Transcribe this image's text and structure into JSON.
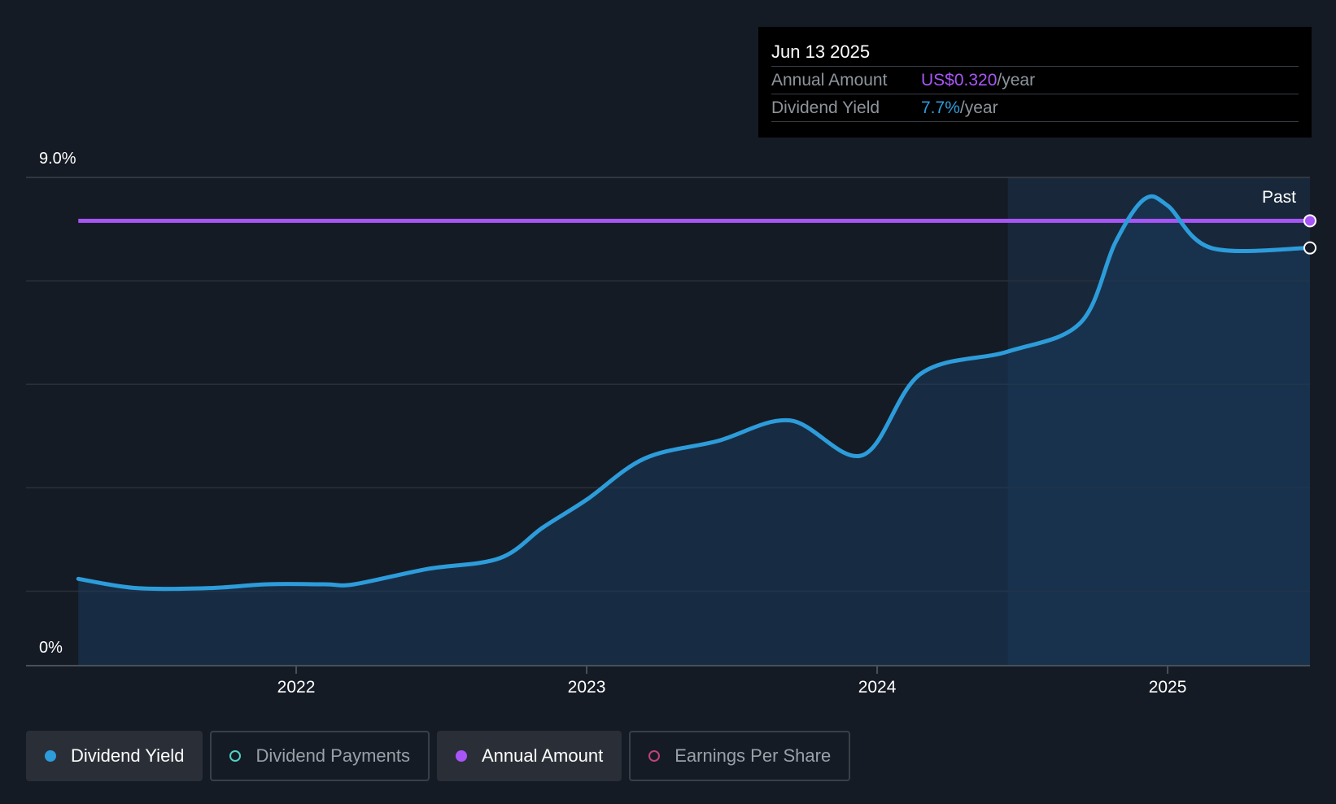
{
  "tooltip": {
    "date": "Jun 13 2025",
    "amount_label": "Annual Amount",
    "amount_value": "US$0.320",
    "amount_unit": "/year",
    "yield_label": "Dividend Yield",
    "yield_value": "7.7%",
    "yield_unit": "/year"
  },
  "colors": {
    "yield": "#2d9cdb",
    "amount": "#a855f7",
    "payments": "#4fd1c5",
    "eps": "#c2417a",
    "background": "#151b24"
  },
  "legend": [
    {
      "label": "Dividend Yield",
      "color": "#2d9cdb",
      "active": true,
      "filled": true
    },
    {
      "label": "Dividend Payments",
      "color": "#4fd1c5",
      "active": false,
      "filled": false
    },
    {
      "label": "Annual Amount",
      "color": "#a855f7",
      "active": true,
      "filled": true
    },
    {
      "label": "Earnings Per Share",
      "color": "#c2417a",
      "active": false,
      "filled": false
    }
  ],
  "chart_data": {
    "type": "line",
    "y_top_label": "9.0%",
    "y_bottom_label": "0%",
    "ylim": [
      0,
      9
    ],
    "xlim": [
      2021.07,
      2025.49
    ],
    "x_ticks": [
      {
        "value": 2022,
        "label": "2022"
      },
      {
        "value": 2023,
        "label": "2023"
      },
      {
        "value": 2024,
        "label": "2024"
      },
      {
        "value": 2025,
        "label": "2025"
      }
    ],
    "past_label": "Past",
    "past_start_x": 2024.45,
    "grid": true,
    "series": [
      {
        "key": "yield",
        "unit": "%",
        "x": [
          2021.25,
          2021.45,
          2021.7,
          2021.9,
          2022.1,
          2022.2,
          2022.45,
          2022.7,
          2022.85,
          2023.0,
          2023.2,
          2023.45,
          2023.7,
          2023.95,
          2024.15,
          2024.45,
          2024.7,
          2024.82,
          2024.92,
          2025.0,
          2025.15,
          2025.49
        ],
        "y": [
          1.6,
          1.43,
          1.43,
          1.5,
          1.5,
          1.5,
          1.78,
          1.98,
          2.55,
          3.06,
          3.82,
          4.14,
          4.52,
          3.88,
          5.38,
          5.79,
          6.32,
          7.8,
          8.6,
          8.48,
          7.7,
          7.7
        ]
      },
      {
        "key": "amount",
        "unit": "US$/year",
        "x": [
          2021.25,
          2025.49
        ],
        "y": [
          0.32,
          0.32
        ],
        "y_on_pct_scale": 8.2
      }
    ]
  }
}
